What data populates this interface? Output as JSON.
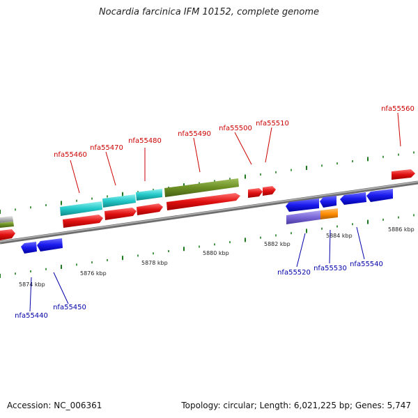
{
  "title": "Nocardia farcinica IFM 10152, complete genome",
  "accession": "Accession: NC_006361",
  "summary": "Topology: circular; Length: 6,021,225 bp; Genes: 5,747",
  "scale_labels": [
    "5874 kbp",
    "5876 kbp",
    "5878 kbp",
    "5880 kbp",
    "5882 kbp",
    "5884 kbp",
    "5886 kbp"
  ],
  "plus_gene_labels": [
    "nfa55460",
    "nfa55470",
    "nfa55480",
    "nfa55490",
    "nfa55500",
    "nfa55510",
    "nfa55560"
  ],
  "minus_gene_labels": [
    "nfa55440",
    "nfa55450",
    "nfa55520",
    "nfa55530",
    "nfa55540"
  ],
  "colors": {
    "plus_label": "#cc0000",
    "minus_label": "#0000aa",
    "backbone": "#8a8a8a",
    "tick": "#1f7a1f",
    "red": "#e01010",
    "blue": "#1a1aee",
    "cyan": "#22c8c8",
    "olive": "#6b8e23",
    "purple": "#7a68d8",
    "orange": "#ff8c00",
    "gray": "#b0b0b0"
  }
}
